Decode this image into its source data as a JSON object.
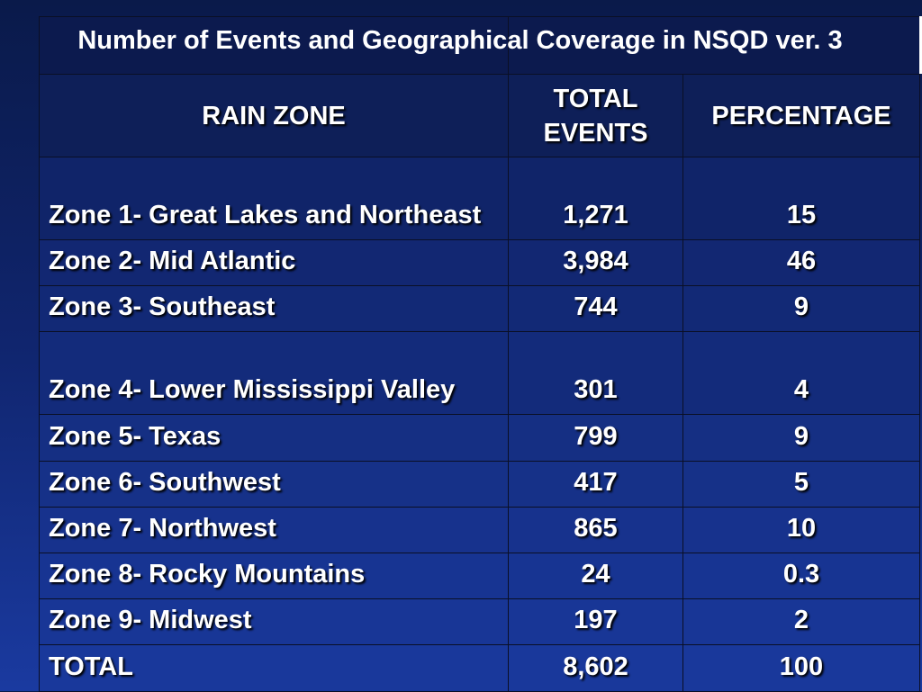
{
  "table": {
    "title": "Number of Events and Geographical Coverage in NSQD ver. 3",
    "header": [
      "RAIN ZONE",
      "TOTAL EVENTS",
      "PERCENTAGE"
    ],
    "rows": [
      [
        "Zone 1- Great Lakes and Northeast",
        "1,271",
        "15"
      ],
      [
        "Zone 2- Mid Atlantic",
        "3,984",
        "46"
      ],
      [
        "Zone 3- Southeast",
        "744",
        "9"
      ],
      [
        "Zone 4- Lower Mississippi Valley",
        "301",
        "4"
      ],
      [
        "Zone 5- Texas",
        "799",
        "9"
      ],
      [
        "Zone 6- Southwest",
        "417",
        "5"
      ],
      [
        "Zone 7- Northwest",
        "865",
        "10"
      ],
      [
        "Zone 8- Rocky Mountains",
        "24",
        "0.3"
      ],
      [
        "Zone 9- Midwest",
        "197",
        "2"
      ],
      [
        "TOTAL",
        "8,602",
        "100"
      ]
    ]
  }
}
